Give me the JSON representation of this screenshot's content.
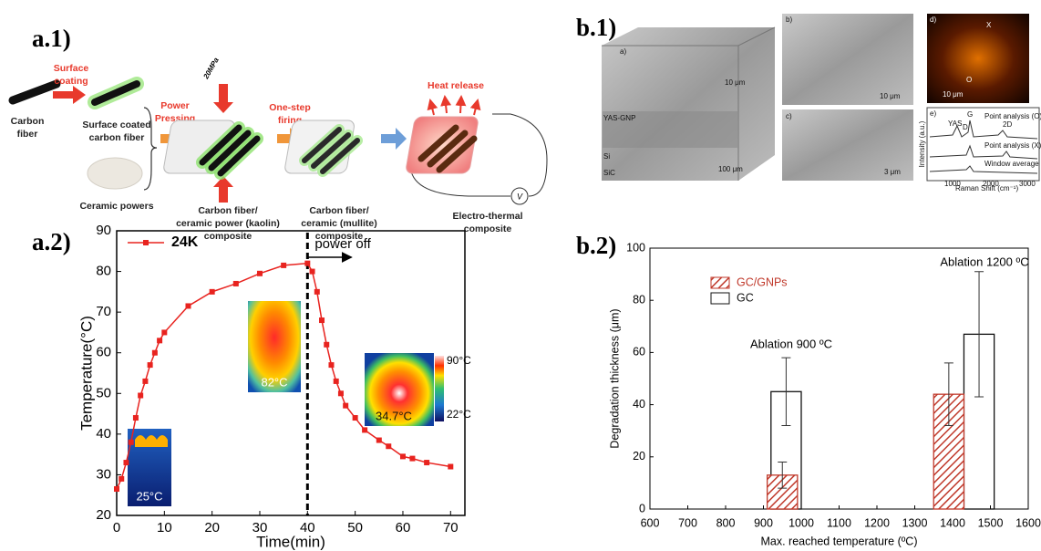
{
  "panel_a1": {
    "label": "a.1)",
    "carbon_fiber": [
      "Carbon",
      "fiber"
    ],
    "surface_coating": [
      "Surface",
      "coating"
    ],
    "coated_fiber": [
      "Surface coated",
      "carbon fiber"
    ],
    "ceramic": "Ceramic powers",
    "power_pressing": [
      "Power",
      "Pressing"
    ],
    "pressure": "20MPa",
    "kaolin": [
      "Carbon fiber/",
      "ceramic power (kaolin)",
      "composite"
    ],
    "firing": [
      "One-step",
      "firing"
    ],
    "mullite": [
      "Carbon fiber/",
      "ceramic (mullite)",
      "composite"
    ],
    "heat_release": "Heat release",
    "voltage": "V",
    "electro": [
      "Electro-thermal",
      "composite"
    ]
  },
  "panel_b1": {
    "label": "b.1)",
    "sublabels": [
      "a)",
      "b)",
      "c)",
      "d)",
      "e)"
    ],
    "scale_bars": [
      "10 μm",
      "100 μm",
      "10 μm",
      "3 μm",
      "10 μm"
    ],
    "layers": [
      "YAS-GNP",
      "Si",
      "SiC"
    ],
    "marks": [
      "X",
      "O"
    ],
    "raman": {
      "peaks": [
        "YAS",
        "D",
        "G",
        "2D"
      ],
      "traces": [
        "Point analysis (O)",
        "Point analysis (X)",
        "Window average"
      ],
      "ylabel": "Intensity (a.u.)",
      "xlabel": "Raman Shift (cm⁻¹)",
      "xticks": [
        "1000",
        "2000",
        "3000"
      ]
    }
  },
  "chart_data": [
    {
      "type": "line",
      "panel_label": "a.2)",
      "xlabel": "Time(min)",
      "ylabel": "Temperature(°C)",
      "x": [
        0,
        1,
        2,
        3,
        4,
        5,
        6,
        7,
        8,
        9,
        10,
        15,
        20,
        25,
        30,
        35,
        40,
        41,
        42,
        43,
        44,
        45,
        46,
        47,
        48,
        50,
        52,
        55,
        57,
        60,
        62,
        65,
        70
      ],
      "series": [
        {
          "name": "24K",
          "color": "#e8231f",
          "values": [
            26.5,
            29,
            33,
            38,
            44,
            49.5,
            53,
            57,
            60,
            63,
            65,
            71.5,
            75,
            77,
            79.5,
            81.5,
            82,
            80,
            75,
            68,
            62,
            57,
            53,
            50,
            47,
            44,
            41,
            38.5,
            37,
            34.5,
            34,
            33,
            32
          ]
        }
      ],
      "xlim": [
        0,
        73
      ],
      "xticks": [
        0,
        10,
        20,
        30,
        40,
        50,
        60,
        70
      ],
      "ylim": [
        20,
        90
      ],
      "yticks": [
        20,
        30,
        40,
        50,
        60,
        70,
        80,
        90
      ],
      "vline": 40,
      "annotation": "power off",
      "inset_labels": [
        "25°C",
        "82°C",
        "34.7°C"
      ],
      "colorbar_labels": [
        "90°C",
        "22°C"
      ]
    },
    {
      "type": "bar",
      "panel_label": "b.2)",
      "xlabel": "Max. reached temperature (ºC)",
      "ylabel": "Degradation thickness (μm)",
      "series": [
        {
          "name": "GC/GNPs",
          "color": "#c0392b",
          "hatch": true,
          "bar_width": 80,
          "x": [
            950,
            1390
          ],
          "values": [
            13,
            44
          ],
          "errors": [
            5,
            12
          ]
        },
        {
          "name": "GC",
          "color": "#111111",
          "hatch": false,
          "bar_width": 80,
          "x": [
            960,
            1470
          ],
          "values": [
            45,
            67
          ],
          "errors": [
            13,
            24
          ]
        }
      ],
      "annotations": [
        "Ablation 900 ºC",
        "Ablation 1200 ºC"
      ],
      "xlim": [
        600,
        1600
      ],
      "xticks": [
        600,
        700,
        800,
        900,
        1000,
        1100,
        1200,
        1300,
        1400,
        1500,
        1600
      ],
      "ylim": [
        0,
        100
      ],
      "yticks": [
        0,
        20,
        40,
        60,
        80,
        100
      ]
    }
  ]
}
